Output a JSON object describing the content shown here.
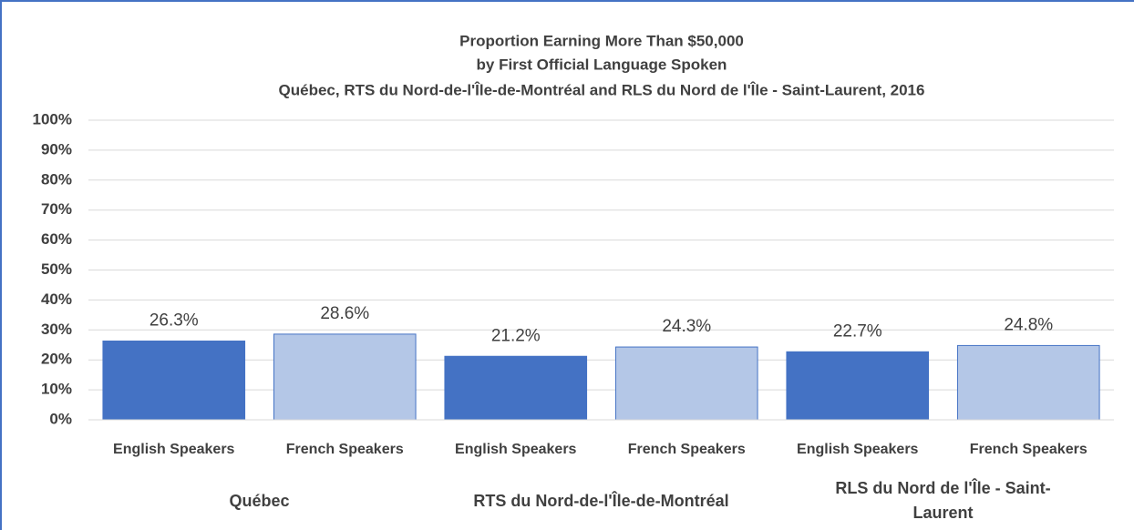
{
  "chart_data": {
    "type": "bar",
    "title": [
      "Proportion Earning More Than $50,000",
      "by First Official Language Spoken",
      "Québec, RTS du Nord-de-l'Île-de-Montréal and RLS du Nord de l'Île - Saint-Laurent, 2016"
    ],
    "categories": [
      "English Speakers",
      "French Speakers",
      "English Speakers",
      "French Speakers",
      "English Speakers",
      "French Speakers"
    ],
    "groups": [
      "Québec",
      "RTS du Nord-de-l'Île-de-Montréal",
      "RLS du Nord de l'Île - Saint-Laurent"
    ],
    "values": [
      26.3,
      28.6,
      21.2,
      24.3,
      22.7,
      24.8
    ],
    "value_labels": [
      "26.3%",
      "28.6%",
      "21.2%",
      "24.3%",
      "22.7%",
      "24.8%"
    ],
    "colors": [
      "#4472c4",
      "#b4c7e7",
      "#4472c4",
      "#b4c7e7",
      "#4472c4",
      "#b4c7e7"
    ],
    "ylim": [
      0,
      100
    ],
    "yticks": [
      {
        "value": 0,
        "label": "0%"
      },
      {
        "value": 10,
        "label": "10%"
      },
      {
        "value": 20,
        "label": "20%"
      },
      {
        "value": 30,
        "label": "30%"
      },
      {
        "value": 40,
        "label": "40%"
      },
      {
        "value": 50,
        "label": "50%"
      },
      {
        "value": 60,
        "label": "60%"
      },
      {
        "value": 70,
        "label": "70%"
      },
      {
        "value": 80,
        "label": "80%"
      },
      {
        "value": 90,
        "label": "90%"
      },
      {
        "value": 100,
        "label": "100%"
      }
    ],
    "grid": true
  }
}
